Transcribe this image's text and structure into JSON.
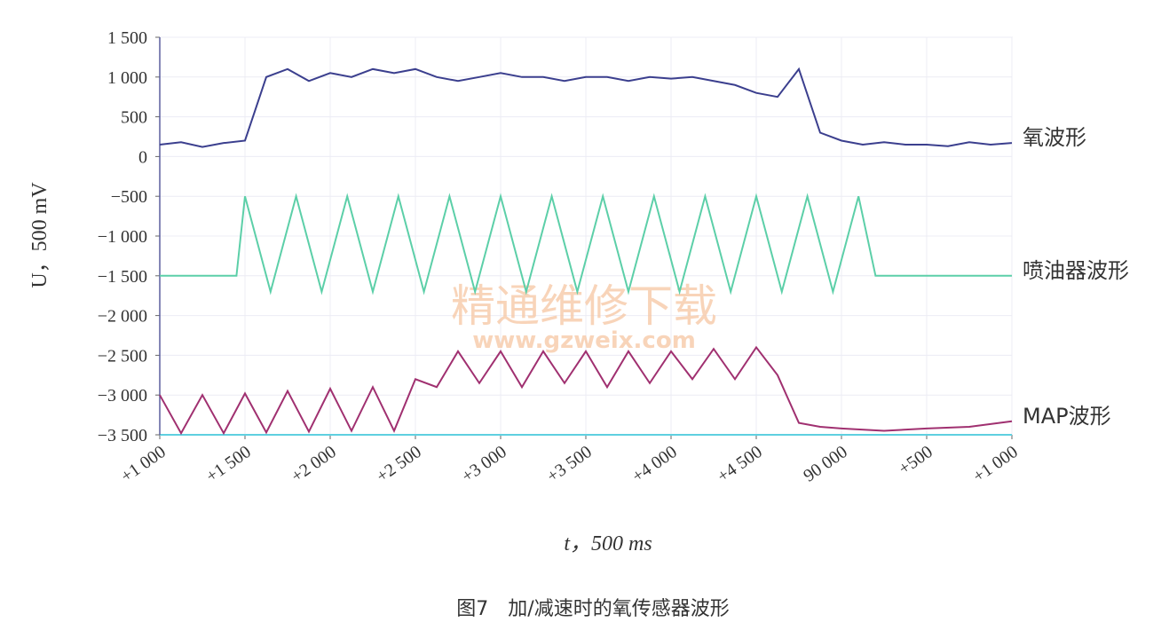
{
  "chart_data": {
    "type": "line",
    "caption": "图7　加/减速时的氧传感器波形",
    "xlabel": "t，500 ms",
    "ylabel": "U，500 mV",
    "watermark": {
      "title": "精通维修下载",
      "url": "www.gzweix.com"
    },
    "xlim": [
      0,
      10
    ],
    "xticks": [
      {
        "value": 0,
        "label": "+1 000"
      },
      {
        "value": 1,
        "label": "+1 500"
      },
      {
        "value": 2,
        "label": "+2 000"
      },
      {
        "value": 3,
        "label": "+2 500"
      },
      {
        "value": 4,
        "label": "+3 000"
      },
      {
        "value": 5,
        "label": "+3 500"
      },
      {
        "value": 6,
        "label": "+4 000"
      },
      {
        "value": 7,
        "label": "+4 500"
      },
      {
        "value": 8,
        "label": "90 000"
      },
      {
        "value": 9,
        "label": "+500"
      },
      {
        "value": 10,
        "label": "+1 000"
      }
    ],
    "ylim": [
      -3500,
      1500
    ],
    "yticks": [
      {
        "value": 1500,
        "label": "1 500"
      },
      {
        "value": 1000,
        "label": "1 000"
      },
      500,
      0,
      {
        "value": -500,
        "label": "−500"
      },
      {
        "value": -1000,
        "label": "−1 000"
      },
      {
        "value": -1500,
        "label": "−1 500"
      },
      {
        "value": -2000,
        "label": "−2 000"
      },
      {
        "value": -2500,
        "label": "−2 500"
      },
      {
        "value": -3000,
        "label": "−3 000"
      },
      {
        "value": -3500,
        "label": "−3 500"
      }
    ],
    "grid": true,
    "series": [
      {
        "name": "氧波形",
        "color": "#3b3f8e",
        "x": [
          0,
          0.25,
          0.5,
          0.75,
          1,
          1.25,
          1.5,
          1.75,
          2,
          2.25,
          2.5,
          2.75,
          3,
          3.25,
          3.5,
          3.75,
          4,
          4.25,
          4.5,
          4.75,
          5,
          5.25,
          5.5,
          5.75,
          6,
          6.25,
          6.5,
          6.75,
          7,
          7.25,
          7.5,
          7.75,
          8,
          8.25,
          8.5,
          8.75,
          9,
          9.25,
          9.5,
          9.75,
          10
        ],
        "values": [
          150,
          180,
          120,
          170,
          200,
          1000,
          1100,
          950,
          1050,
          1000,
          1100,
          1050,
          1100,
          1000,
          950,
          1000,
          1050,
          1000,
          1000,
          950,
          1000,
          1000,
          950,
          1000,
          980,
          1000,
          950,
          900,
          800,
          750,
          1100,
          300,
          200,
          150,
          180,
          150,
          150,
          130,
          180,
          150,
          170
        ]
      },
      {
        "name": "喷油器波形",
        "color": "#5ccfa8",
        "x": [
          0,
          0.9,
          1,
          1.3,
          1.6,
          1.9,
          2.2,
          2.5,
          2.8,
          3.1,
          3.4,
          3.7,
          4,
          4.3,
          4.6,
          4.9,
          5.2,
          5.5,
          5.8,
          6.1,
          6.4,
          6.7,
          7,
          7.3,
          7.6,
          7.9,
          8.2,
          8.4,
          10
        ],
        "values": [
          -1500,
          -1500,
          -500,
          -1700,
          -500,
          -1700,
          -500,
          -1700,
          -500,
          -1700,
          -500,
          -1700,
          -500,
          -1700,
          -500,
          -1700,
          -500,
          -1700,
          -500,
          -1700,
          -500,
          -1700,
          -500,
          -1700,
          -500,
          -1700,
          -500,
          -1500,
          -1500
        ]
      },
      {
        "name": "MAP波形",
        "color": "#a03070",
        "x": [
          0,
          0.25,
          0.5,
          0.75,
          1,
          1.25,
          1.5,
          1.75,
          2,
          2.25,
          2.5,
          2.75,
          3,
          3.25,
          3.5,
          3.75,
          4,
          4.25,
          4.5,
          4.75,
          5,
          5.25,
          5.5,
          5.75,
          6,
          6.25,
          6.5,
          6.75,
          7,
          7.25,
          7.5,
          7.75,
          8,
          8.5,
          9,
          9.5,
          10
        ],
        "values": [
          -3000,
          -3480,
          -3000,
          -3480,
          -2980,
          -3470,
          -2950,
          -3460,
          -2920,
          -3450,
          -2900,
          -3450,
          -2800,
          -2900,
          -2450,
          -2850,
          -2450,
          -2900,
          -2450,
          -2850,
          -2450,
          -2900,
          -2450,
          -2850,
          -2450,
          -2800,
          -2420,
          -2800,
          -2400,
          -2750,
          -3350,
          -3400,
          -3420,
          -3450,
          -3420,
          -3400,
          -3330
        ]
      }
    ]
  }
}
